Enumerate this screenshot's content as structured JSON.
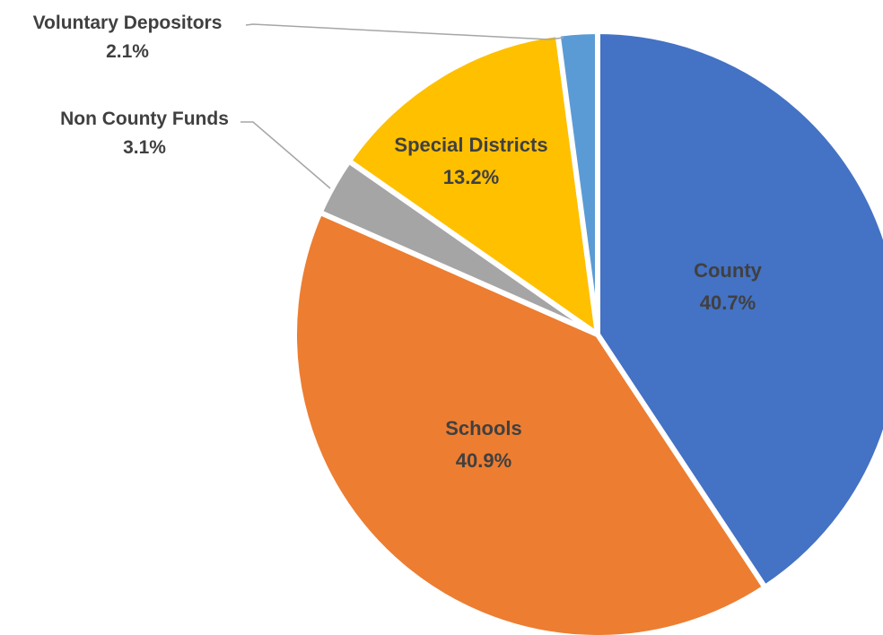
{
  "chart_data": {
    "type": "pie",
    "slices": [
      {
        "name": "County",
        "value": 40.7,
        "label": "40.7%",
        "color": "#4472C4"
      },
      {
        "name": "Schools",
        "value": 40.9,
        "label": "40.9%",
        "color": "#ED7D31"
      },
      {
        "name": "Non County Funds",
        "value": 3.1,
        "label": "3.1%",
        "color": "#A5A5A5"
      },
      {
        "name": "Special Districts",
        "value": 13.2,
        "label": "13.2%",
        "color": "#FFC000"
      },
      {
        "name": "Voluntary Depositors",
        "value": 2.1,
        "label": "2.1%",
        "color": "#5B9BD5"
      }
    ],
    "start_angle_deg": 0,
    "direction": "clockwise",
    "legend": "none",
    "leader_line_color": "#A6A6A6",
    "text_color": "#404040"
  }
}
